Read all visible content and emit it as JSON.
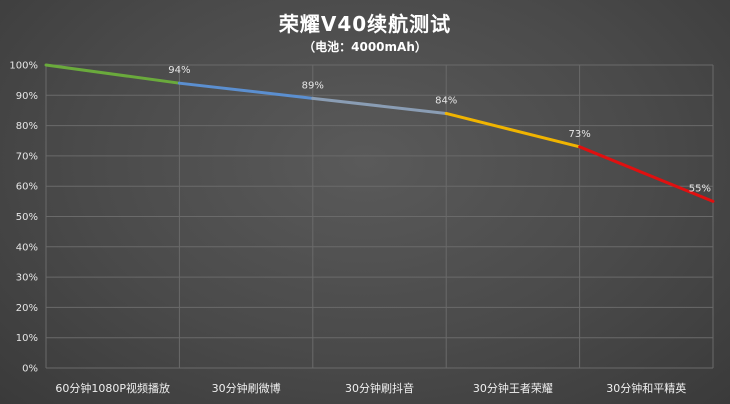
{
  "header": {
    "title": "荣耀V40续航测试",
    "subtitle": "（电池：4000mAh）"
  },
  "chart_data": {
    "type": "line",
    "title": "荣耀V40续航测试",
    "subtitle": "（电池：4000mAh）",
    "categories": [
      "60分钟1080P视频播放",
      "30分钟刷微博",
      "30分钟刷抖音",
      "30分钟王者荣耀",
      "30分钟和平精英"
    ],
    "y_ticks": [
      "0%",
      "10%",
      "20%",
      "30%",
      "40%",
      "50%",
      "60%",
      "70%",
      "80%",
      "90%",
      "100%"
    ],
    "ylim": [
      0,
      100
    ],
    "grid": true,
    "x": [
      0,
      1,
      2,
      3,
      4,
      5
    ],
    "values": [
      100,
      94,
      89,
      84,
      73,
      55
    ],
    "point_labels": [
      "",
      "94%",
      "89%",
      "84%",
      "73%",
      "55%"
    ],
    "segment_colors": [
      "#6aaa3c",
      "#5b8fd0",
      "#8a9db4",
      "#f0b400",
      "#e01010"
    ]
  }
}
